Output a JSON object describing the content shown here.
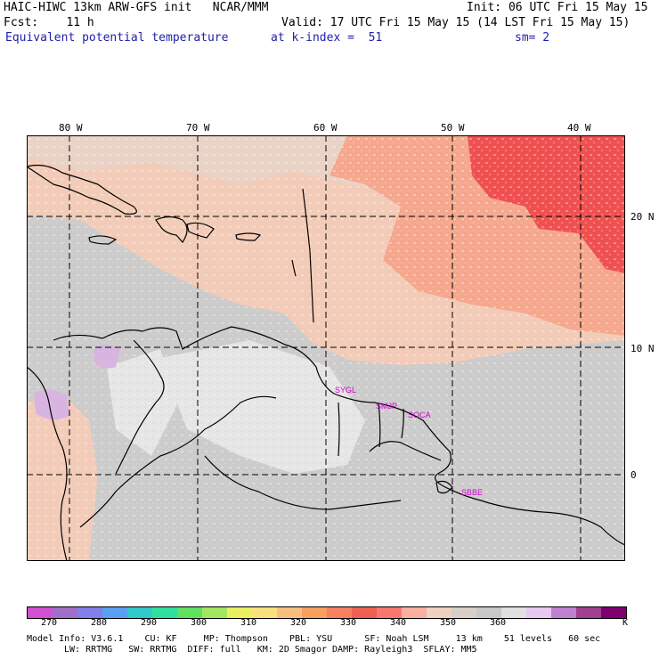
{
  "header": {
    "line1_left": "HAIC-HIWC 13km ARW-GFS init   NCAR/MMM",
    "line1_right": "Init: 06 UTC Fri 15 May 15",
    "line2_left": "Fcst:    11 h",
    "line2_right": "Valid: 17 UTC Fri 15 May 15 (14 LST Fri 15 May 15)",
    "line3_field": "Equivalent potential temperature",
    "line3_level": "at k-index =  51",
    "line3_smooth": "sm= 2"
  },
  "map": {
    "longitude_labels": [
      "80 W",
      "70 W",
      "60 W",
      "50 W",
      "40 W"
    ],
    "latitude_labels": [
      "20 N",
      "10 N",
      "0"
    ],
    "station_labels": [
      "SYGL",
      "SMJP",
      "SOCA",
      "SBBE"
    ],
    "colors": {
      "warm_red": "#f05050",
      "salmon": "#f5a88e",
      "peach": "#f2ccb8",
      "light_gray": "#cccccc",
      "pale_gray": "#e6e6e6",
      "lavender": "#d8b4e0"
    }
  },
  "colorbar": {
    "colors": [
      "#d050d0",
      "#a070c8",
      "#8080e8",
      "#5aa0f0",
      "#30c8c8",
      "#30e0a0",
      "#60e060",
      "#a0e860",
      "#e8f060",
      "#f8e080",
      "#f8c080",
      "#f8a060",
      "#f88060",
      "#f06050",
      "#f87870",
      "#f8b0a0",
      "#f0d0c0",
      "#d8d0c8",
      "#c8c8c8",
      "#e0e0e0",
      "#e8c8f0",
      "#c080d0",
      "#a04090",
      "#800070"
    ],
    "tick_labels": [
      "270",
      "280",
      "290",
      "300",
      "310",
      "320",
      "330",
      "340",
      "350",
      "360"
    ],
    "unit": "K"
  },
  "info": {
    "line1": "Model Info: V3.6.1    CU: KF     MP: Thompson    PBL: YSU      SF: Noah LSM     13 km    51 levels   60 sec",
    "line2": "LW: RRTMG   SW: RRTMG  DIFF: full   KM: 2D Smagor DAMP: Rayleigh3  SFLAY: MM5"
  }
}
